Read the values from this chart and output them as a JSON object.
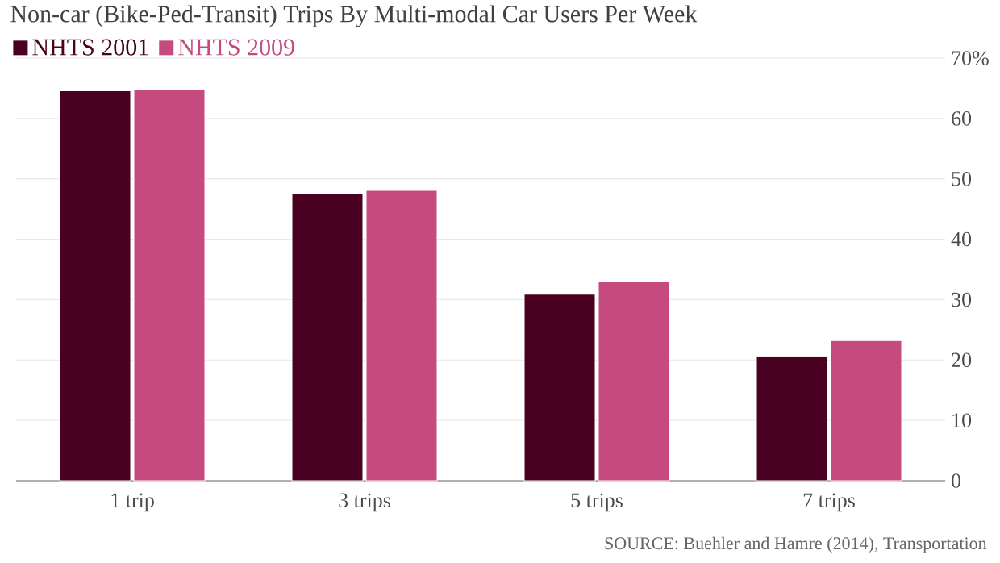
{
  "chart_data": {
    "type": "bar",
    "title": "Non-car (Bike-Ped-Transit) Trips By Multi-modal Car Users Per Week",
    "categories": [
      "1 trip",
      "3 trips",
      "5 trips",
      "7 trips"
    ],
    "series": [
      {
        "name": "NHTS 2001",
        "color": "#4a0020",
        "values": [
          64.6,
          47.5,
          30.9,
          20.6
        ]
      },
      {
        "name": "NHTS 2009",
        "color": "#c44a80",
        "values": [
          64.8,
          48.1,
          33.0,
          23.2
        ]
      }
    ],
    "ylim": [
      0,
      70
    ],
    "yticks": [
      0,
      10,
      20,
      30,
      40,
      50,
      60,
      {
        "value": 70,
        "label": "70%"
      }
    ],
    "grid": "y",
    "legend": "top left",
    "annotations": [
      "SOURCE: Buehler and Hamre (2014), Transportation"
    ]
  }
}
